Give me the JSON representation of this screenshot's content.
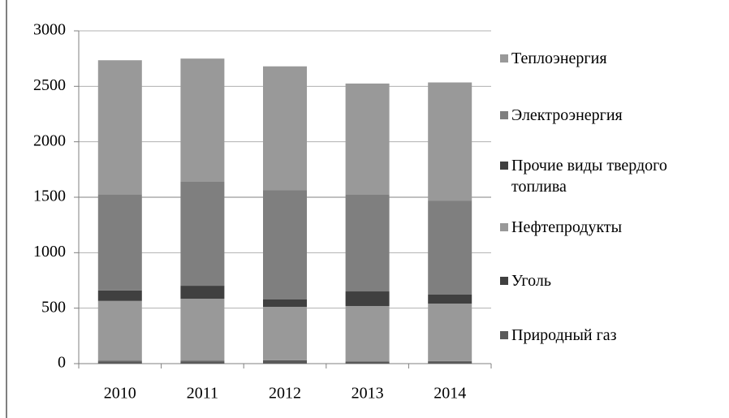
{
  "chart_data": {
    "type": "stacked_bar",
    "categories": [
      "2010",
      "2011",
      "2012",
      "2013",
      "2014"
    ],
    "series": [
      {
        "name": "Природный газ",
        "color": "#5a5a5a",
        "values": [
          20,
          20,
          25,
          15,
          20
        ]
      },
      {
        "name": "Уголь",
        "color": "#404040",
        "values": [
          5,
          5,
          5,
          3,
          3
        ]
      },
      {
        "name": "Нефтепродукты",
        "color": "#999999",
        "values": [
          540,
          560,
          482,
          501,
          518
        ]
      },
      {
        "name": "Прочие виды твердого топлива",
        "color": "#404040",
        "values": [
          95,
          117,
          66,
          132,
          81
        ]
      },
      {
        "name": "Электроэнергия",
        "color": "#7f7f7f",
        "values": [
          865,
          937,
          987,
          871,
          848
        ]
      },
      {
        "name": "Теплоэнергия",
        "color": "#999999",
        "values": [
          1210,
          1111,
          1115,
          1003,
          1065
        ]
      }
    ],
    "ylim": [
      0,
      3000
    ],
    "yticks": [
      0,
      500,
      1000,
      1500,
      2000,
      2500,
      3000
    ],
    "grid": true
  }
}
